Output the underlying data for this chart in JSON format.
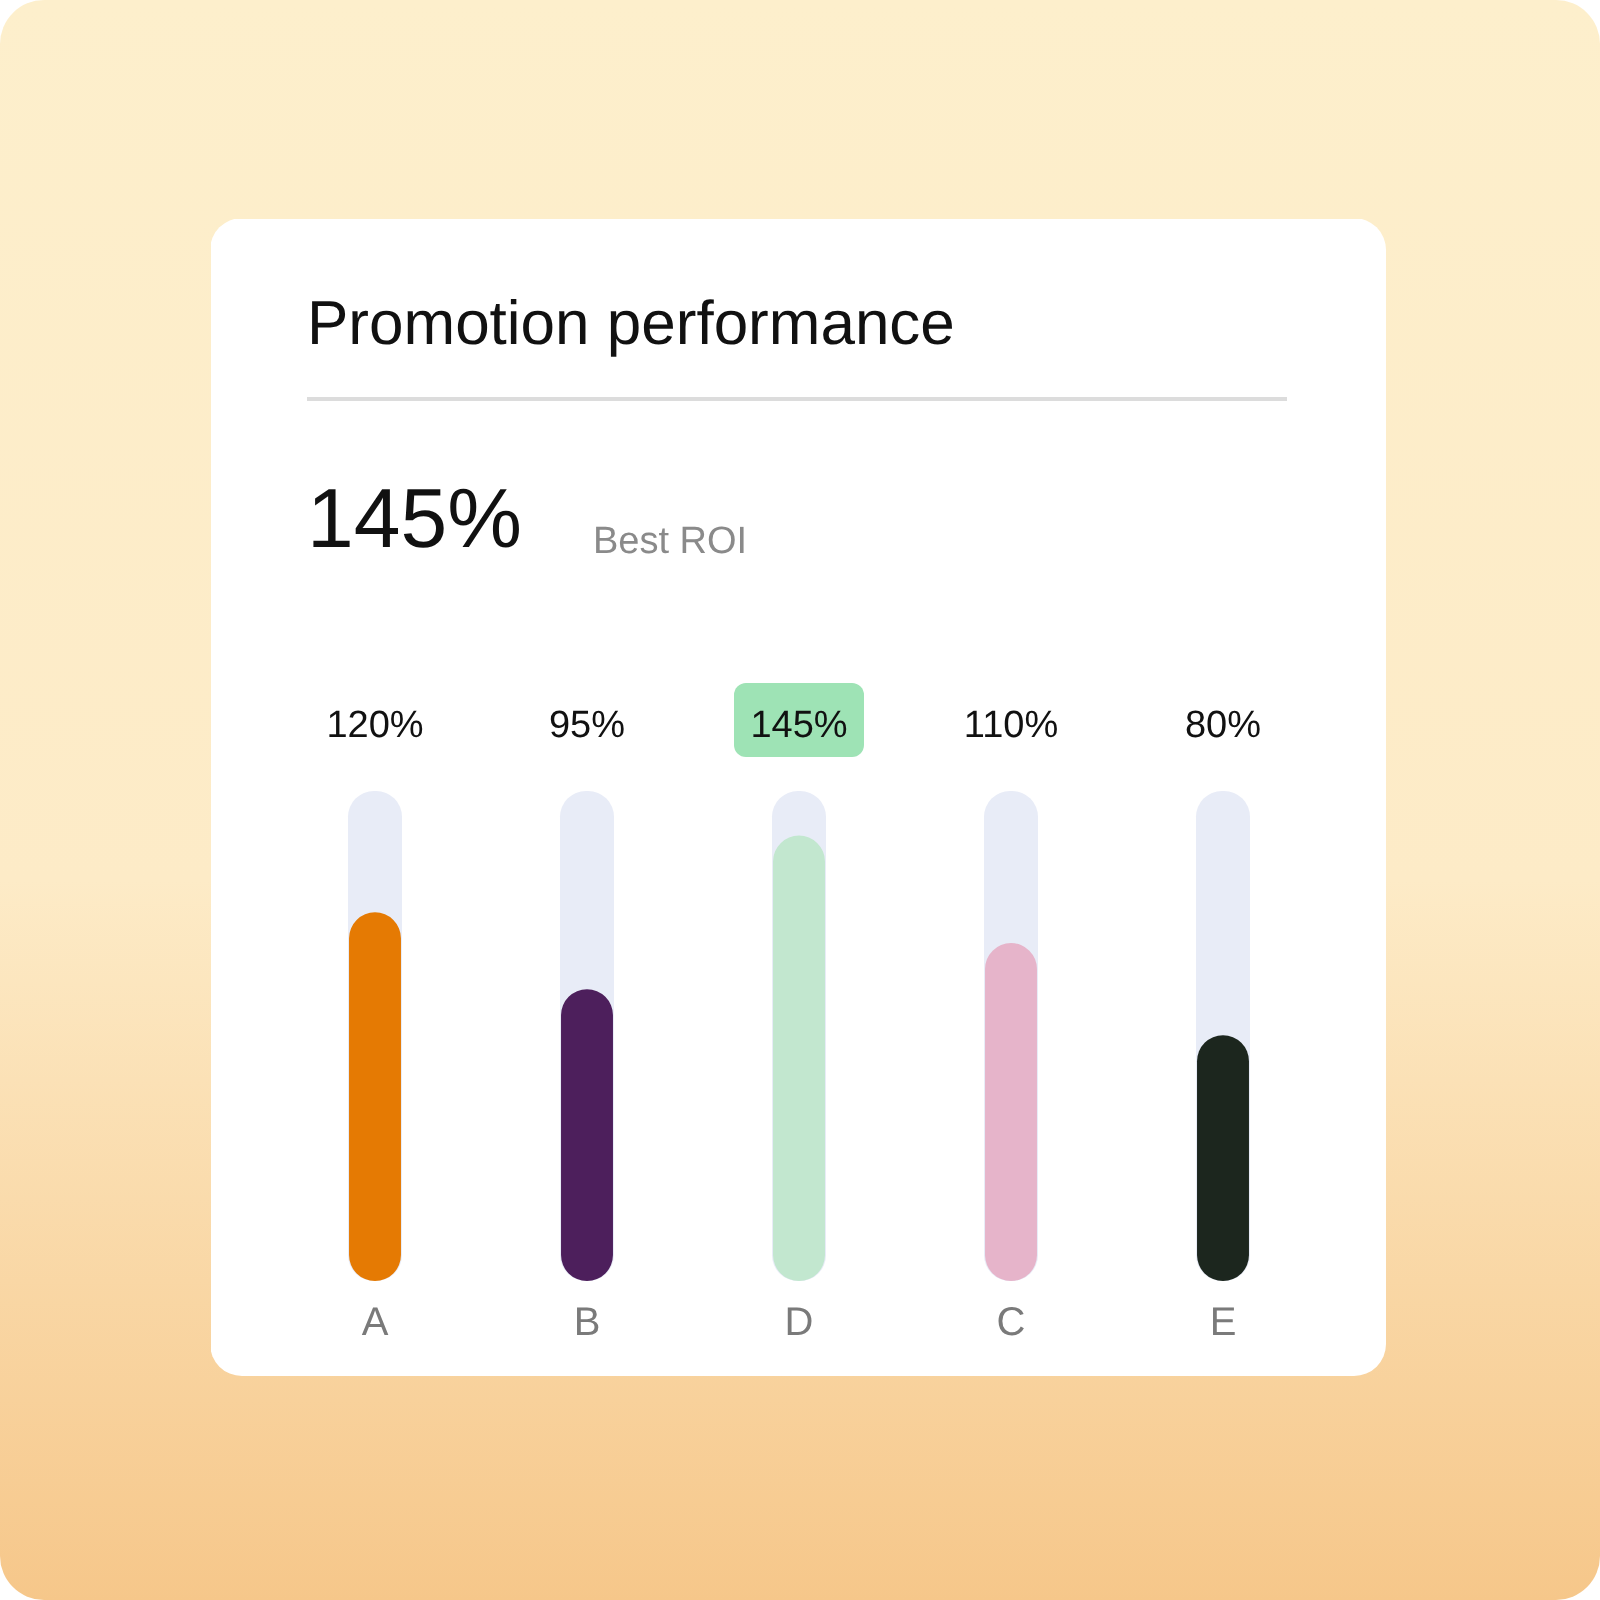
{
  "chart_data": {
    "type": "bar",
    "title": "Promotion performance",
    "annotations": [
      "145%",
      "Best ROI"
    ],
    "categories": [
      "A",
      "B",
      "D",
      "C",
      "E"
    ],
    "values": [
      120,
      95,
      145,
      110,
      80
    ],
    "colors": [
      "#e57a03",
      "#4d1f5c",
      "#c2e7cf",
      "#e6b4ca",
      "#1c261e"
    ],
    "value_labels": [
      "120%",
      "95%",
      "145%",
      "110%",
      "80%"
    ],
    "tick_labels": "x",
    "grid": false
  }
}
